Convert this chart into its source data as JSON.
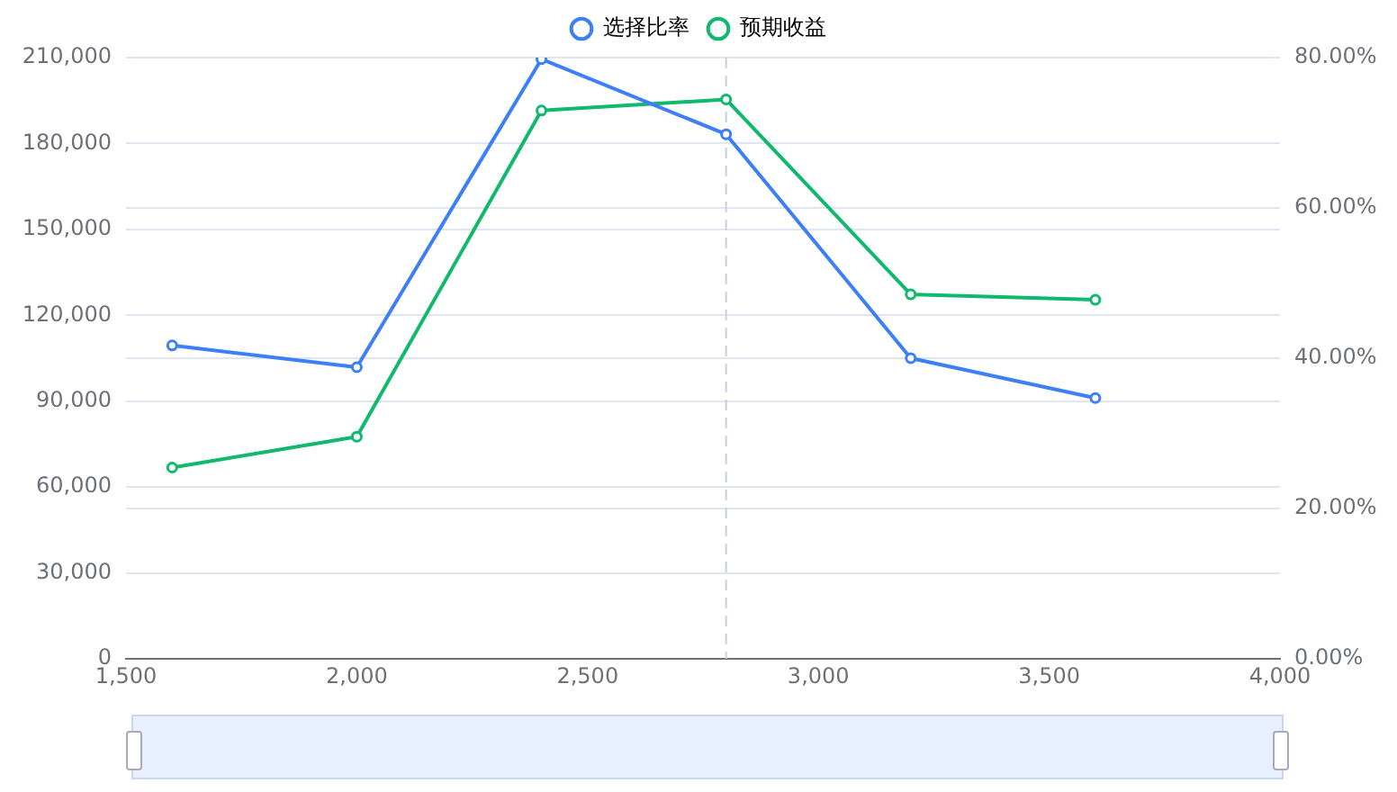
{
  "chart_data": {
    "type": "line",
    "x": [
      1600,
      2000,
      2400,
      2800,
      3200,
      3600
    ],
    "series": [
      {
        "name": "选择比率",
        "color": "#3d7ef9",
        "axis": "y2",
        "values": [
          41.7,
          38.8,
          79.8,
          69.8,
          40.0,
          34.7
        ]
      },
      {
        "name": "预期收益",
        "color": "#10b96c",
        "values": [
          66800,
          77600,
          191500,
          195400,
          127300,
          125400
        ]
      }
    ],
    "xlim": [
      1500,
      4000
    ],
    "xticks": [
      {
        "value": 1500,
        "label": "1,500"
      },
      {
        "value": 2000,
        "label": "2,000"
      },
      {
        "value": 2500,
        "label": "2,500"
      },
      {
        "value": 3000,
        "label": "3,000"
      },
      {
        "value": 3500,
        "label": "3,500"
      },
      {
        "value": 4000,
        "label": "4,000"
      }
    ],
    "ylim": [
      0,
      210000
    ],
    "yticks": [
      0,
      {
        "value": 30000,
        "label": "30,000"
      },
      {
        "value": 60000,
        "label": "60,000"
      },
      {
        "value": 90000,
        "label": "90,000"
      },
      {
        "value": 120000,
        "label": "120,000"
      },
      {
        "value": 150000,
        "label": "150,000"
      },
      {
        "value": 180000,
        "label": "180,000"
      },
      {
        "value": 210000,
        "label": "210,000"
      }
    ],
    "y2lim": [
      0,
      80
    ],
    "y2ticks": [
      {
        "value": 0,
        "label": "0.00%"
      },
      {
        "value": 20,
        "label": "20.00%"
      },
      {
        "value": 40,
        "label": "40.00%"
      },
      {
        "value": 60,
        "label": "60.00%"
      },
      {
        "value": 80,
        "label": "80.00%"
      }
    ],
    "ref_lines": [
      {
        "axis": "x",
        "value": 2800,
        "color": "#c8cde0",
        "line_style": "dashed"
      }
    ],
    "grid": "y",
    "legend": "top",
    "marker": "circle",
    "line_style": "solid"
  }
}
